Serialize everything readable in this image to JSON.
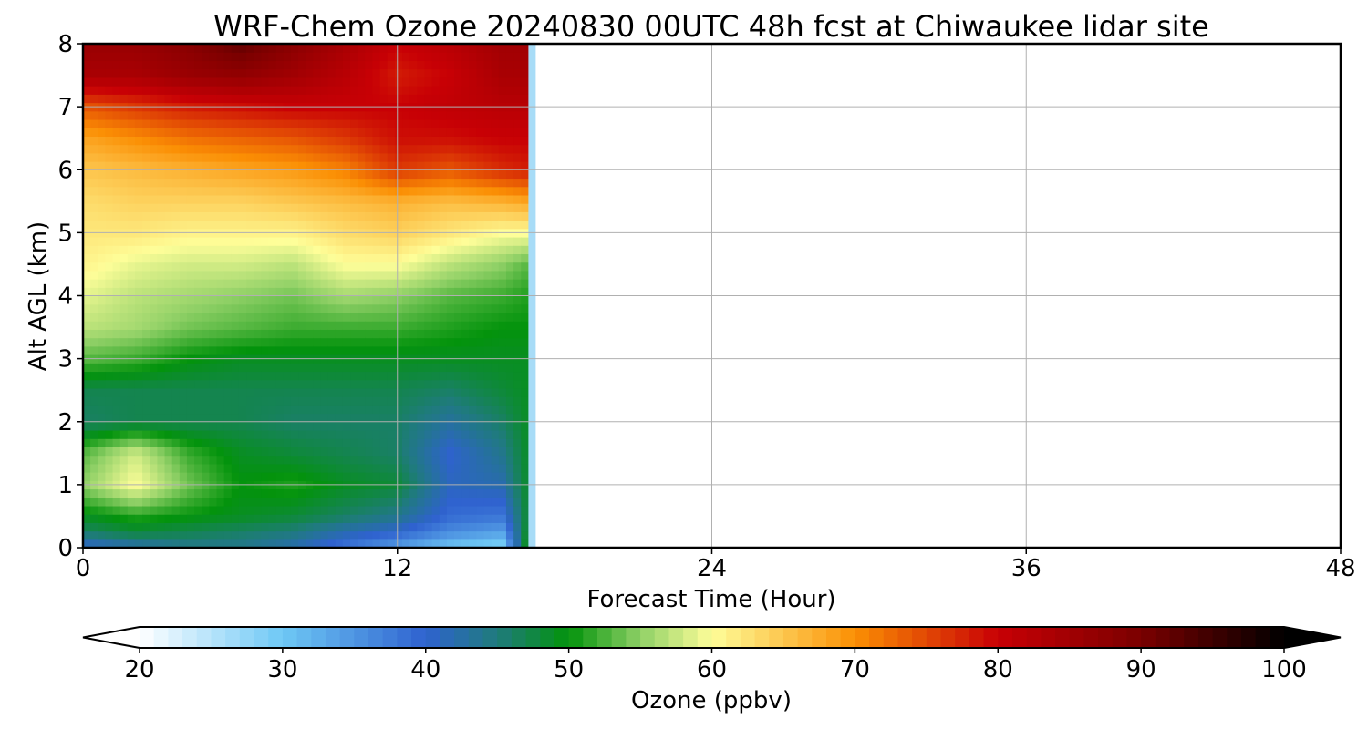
{
  "chart_data": {
    "type": "heatmap",
    "title": "WRF-Chem Ozone  20240830 00UTC 48h fcst at Chiwaukee lidar site",
    "xlabel": "Forecast Time (Hour)",
    "ylabel": "Alt AGL (km)",
    "xlim": [
      0,
      48
    ],
    "ylim": [
      0,
      8
    ],
    "xticks": [
      0,
      12,
      24,
      36,
      48
    ],
    "yticks": [
      0,
      1,
      2,
      3,
      4,
      5,
      6,
      7,
      8
    ],
    "grid": true,
    "data_end_hour": 17,
    "x": [
      0,
      2,
      4,
      6,
      8,
      10,
      12,
      14,
      16,
      17
    ],
    "y": [
      0,
      0.25,
      0.5,
      1,
      1.5,
      2,
      2.5,
      3,
      3.5,
      4,
      4.5,
      5,
      5.5,
      6,
      6.5,
      7,
      7.5,
      8
    ],
    "values": [
      [
        40,
        42,
        44,
        44,
        42,
        38,
        34,
        30,
        28,
        52
      ],
      [
        46,
        48,
        47,
        46,
        45,
        42,
        40,
        36,
        34,
        50
      ],
      [
        49,
        51,
        50,
        49,
        48,
        46,
        44,
        39,
        38,
        49
      ],
      [
        55,
        60,
        54,
        50,
        51,
        49,
        48,
        41,
        42,
        49
      ],
      [
        53,
        58,
        52,
        49,
        48,
        47,
        46,
        40,
        44,
        49
      ],
      [
        46,
        47,
        47,
        47,
        46,
        46,
        46,
        43,
        46,
        49
      ],
      [
        47,
        47,
        47,
        47,
        47,
        47,
        47,
        46,
        48,
        49
      ],
      [
        53,
        52,
        50,
        49,
        49,
        49,
        49,
        49,
        49,
        49
      ],
      [
        57,
        56,
        54,
        53,
        52,
        52,
        52,
        51,
        50,
        50
      ],
      [
        59,
        57,
        56,
        55,
        54,
        56,
        55,
        53,
        52,
        51
      ],
      [
        61,
        59,
        58,
        58,
        57,
        60,
        60,
        57,
        55,
        53
      ],
      [
        62,
        62,
        61,
        61,
        61,
        63,
        64,
        62,
        60,
        60
      ],
      [
        63,
        64,
        64,
        64,
        65,
        66,
        67,
        66,
        67,
        68
      ],
      [
        65,
        66,
        67,
        68,
        69,
        71,
        76,
        74,
        77,
        78
      ],
      [
        68,
        70,
        72,
        73,
        74,
        76,
        79,
        79,
        80,
        80
      ],
      [
        74,
        76,
        78,
        79,
        80,
        80,
        80,
        81,
        82,
        82
      ],
      [
        84,
        84,
        86,
        87,
        85,
        82,
        78,
        80,
        84,
        84
      ],
      [
        86,
        86,
        88,
        92,
        88,
        84,
        80,
        82,
        85,
        85
      ]
    ],
    "colorbar": {
      "label": "Ozone  (ppbv)",
      "min": 20,
      "max": 100,
      "ticks": [
        20,
        30,
        40,
        50,
        60,
        70,
        80,
        90,
        100
      ],
      "extend": "both",
      "colors": [
        {
          "value": 20,
          "color": "#ffffff"
        },
        {
          "value": 30,
          "color": "#6ec8f5"
        },
        {
          "value": 40,
          "color": "#2f62cf"
        },
        {
          "value": 45,
          "color": "#1f7b7c"
        },
        {
          "value": 50,
          "color": "#03930c"
        },
        {
          "value": 55,
          "color": "#8fd066"
        },
        {
          "value": 60,
          "color": "#fefe99"
        },
        {
          "value": 70,
          "color": "#fb8f04"
        },
        {
          "value": 80,
          "color": "#c80005"
        },
        {
          "value": 90,
          "color": "#7a0000"
        },
        {
          "value": 100,
          "color": "#000000"
        }
      ]
    }
  }
}
